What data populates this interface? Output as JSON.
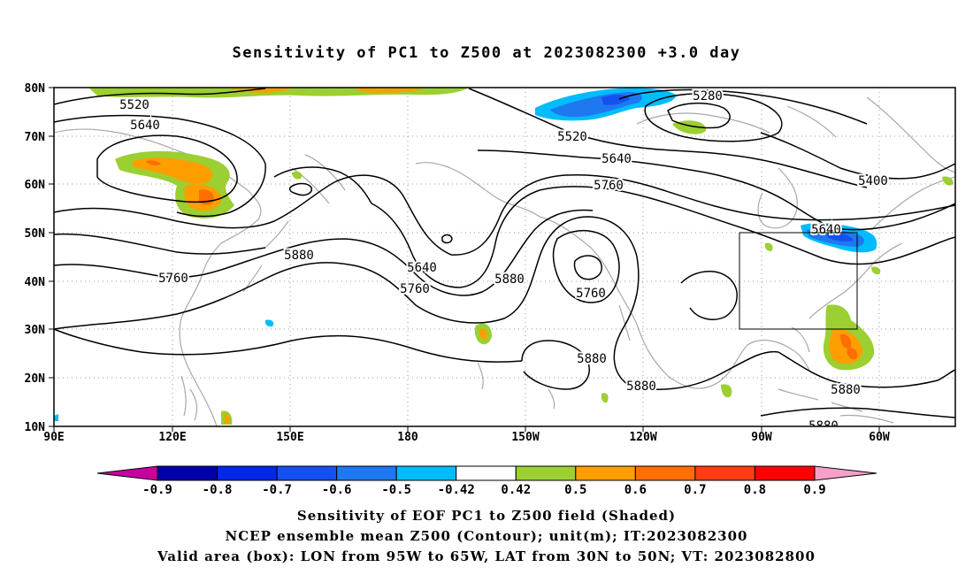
{
  "title": "Sensitivity of PC1 to Z500 at 2023082300 +3.0 day",
  "lat_labels": [
    "80N",
    "70N",
    "60N",
    "50N",
    "40N",
    "30N",
    "20N",
    "10N"
  ],
  "lon_labels": [
    "90E",
    "120E",
    "150E",
    "180",
    "150W",
    "120W",
    "90W",
    "60W"
  ],
  "contour_labels": [
    "5520",
    "5640",
    "5760",
    "5880",
    "5640",
    "5760",
    "5880",
    "5760",
    "5280",
    "5520",
    "5640",
    "5760",
    "5400",
    "5640",
    "5880",
    "5880",
    "5880",
    "5880"
  ],
  "colorbar": {
    "ticks": [
      "-0.9",
      "-0.8",
      "-0.7",
      "-0.6",
      "-0.5",
      "-0.42",
      "0.42",
      "0.5",
      "0.6",
      "0.7",
      "0.8",
      "0.9"
    ],
    "colors": [
      "#0000a8",
      "#0028e6",
      "#1450f0",
      "#1e78f0",
      "#00bcff",
      "#ffffff",
      "#9ccf31",
      "#ff9e00",
      "#ff6e00",
      "#ff3c14",
      "#ff0000"
    ],
    "low_color": "#c800a0",
    "high_color": "#f5a0c8"
  },
  "valid_box": {
    "lon_west": "95W",
    "lon_east": "65W",
    "lat_south": "30N",
    "lat_north": "50N"
  },
  "captions": [
    "Sensitivity of EOF PC1 to Z500 field (Shaded)",
    "NCEP ensemble mean Z500 (Contour); unit(m); IT:2023082300",
    "Valid area (box): LON from 95W to 65W, LAT from 30N to 50N; VT: 2023082800"
  ]
}
